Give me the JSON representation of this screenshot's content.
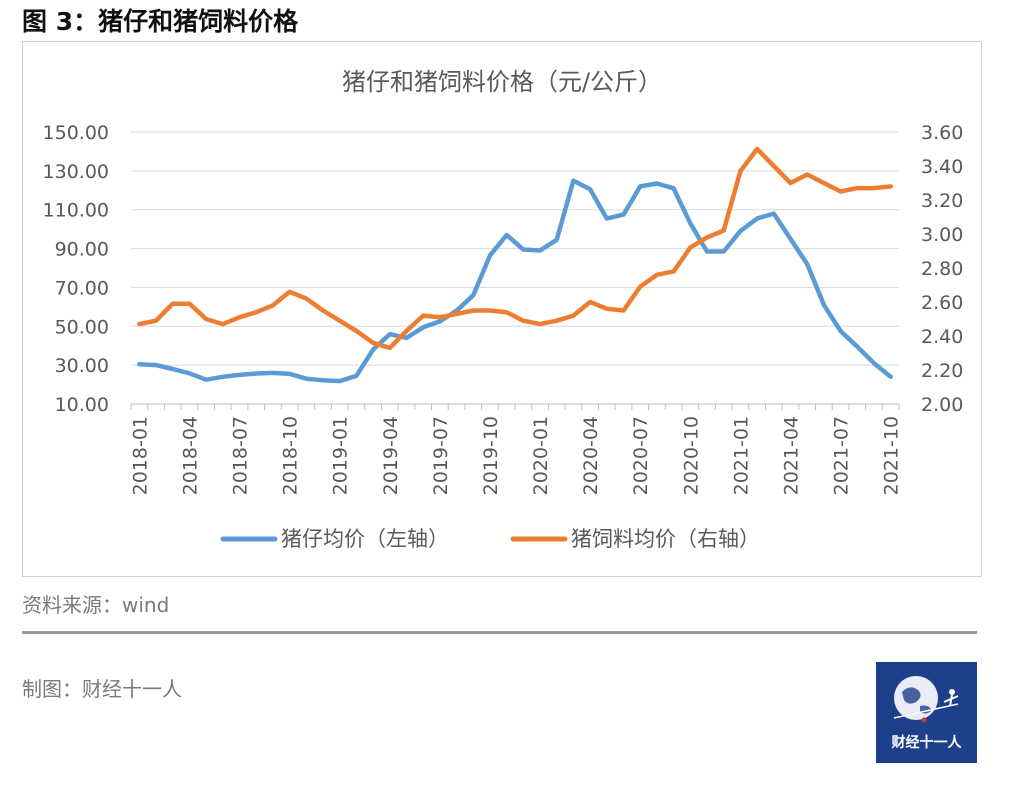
{
  "figure": {
    "title": "图 3：猪仔和猪饲料价格",
    "source": "资料来源：wind",
    "credit": "制图：财经十一人",
    "logo_text": "财经十一人"
  },
  "colors": {
    "piglet": "#5b9bd5",
    "feed": "#ed7d31",
    "grid": "#d9d9d9",
    "axis_text": "#595959",
    "logo_bg": "#1e3f8a"
  },
  "chart_data": {
    "type": "line",
    "title": "猪仔和猪饲料价格（元/公斤）",
    "x_tick_labels": [
      "2018-01",
      "2018-04",
      "2018-07",
      "2018-10",
      "2019-01",
      "2019-04",
      "2019-07",
      "2019-10",
      "2020-01",
      "2020-04",
      "2020-07",
      "2020-10",
      "2021-01",
      "2021-04",
      "2021-07",
      "2021-10"
    ],
    "x": [
      "2018-01",
      "2018-02",
      "2018-03",
      "2018-04",
      "2018-05",
      "2018-06",
      "2018-07",
      "2018-08",
      "2018-09",
      "2018-10",
      "2018-11",
      "2018-12",
      "2019-01",
      "2019-02",
      "2019-03",
      "2019-04",
      "2019-05",
      "2019-06",
      "2019-07",
      "2019-08",
      "2019-09",
      "2019-10",
      "2019-11",
      "2019-12",
      "2020-01",
      "2020-02",
      "2020-03",
      "2020-04",
      "2020-05",
      "2020-06",
      "2020-07",
      "2020-08",
      "2020-09",
      "2020-10",
      "2020-11",
      "2020-12",
      "2021-01",
      "2021-02",
      "2021-03",
      "2021-04",
      "2021-05",
      "2021-06",
      "2021-07",
      "2021-08",
      "2021-09",
      "2021-10"
    ],
    "y_left": {
      "ylim": [
        10,
        150
      ],
      "ticks": [
        "150.00",
        "130.00",
        "110.00",
        "90.00",
        "70.00",
        "50.00",
        "30.00",
        "10.00"
      ]
    },
    "y_right": {
      "ylim": [
        2.0,
        3.6
      ],
      "ticks": [
        "3.60",
        "3.40",
        "3.20",
        "3.00",
        "2.80",
        "2.60",
        "2.40",
        "2.20",
        "2.00"
      ]
    },
    "legend_position": "bottom",
    "series": [
      {
        "name": "猪仔均价（左轴）",
        "axis": "left",
        "values": [
          30.5,
          30.0,
          28.0,
          25.8,
          22.5,
          24.0,
          25.0,
          25.7,
          26.0,
          25.5,
          23.0,
          22.2,
          21.8,
          24.5,
          38.0,
          46.0,
          44.0,
          49.5,
          52.5,
          58.0,
          66.0,
          86.5,
          97.0,
          89.5,
          89.0,
          94.5,
          125.0,
          120.5,
          105.5,
          107.5,
          122.0,
          123.5,
          121.0,
          103.0,
          88.5,
          88.5,
          99.0,
          105.5,
          108.0,
          95.0,
          82.0,
          61.0,
          47.5,
          39.5,
          31.0,
          24.0
        ]
      },
      {
        "name": "猪饲料均价（右轴）",
        "axis": "right",
        "values": [
          2.47,
          2.49,
          2.59,
          2.59,
          2.5,
          2.47,
          2.51,
          2.54,
          2.58,
          2.66,
          2.62,
          2.55,
          2.49,
          2.43,
          2.36,
          2.33,
          2.43,
          2.52,
          2.51,
          2.53,
          2.55,
          2.55,
          2.54,
          2.49,
          2.47,
          2.49,
          2.52,
          2.6,
          2.56,
          2.55,
          2.69,
          2.76,
          2.78,
          2.92,
          2.98,
          3.02,
          3.37,
          3.5,
          3.4,
          3.3,
          3.35,
          3.3,
          3.25,
          3.27,
          3.27,
          3.28
        ]
      }
    ]
  }
}
